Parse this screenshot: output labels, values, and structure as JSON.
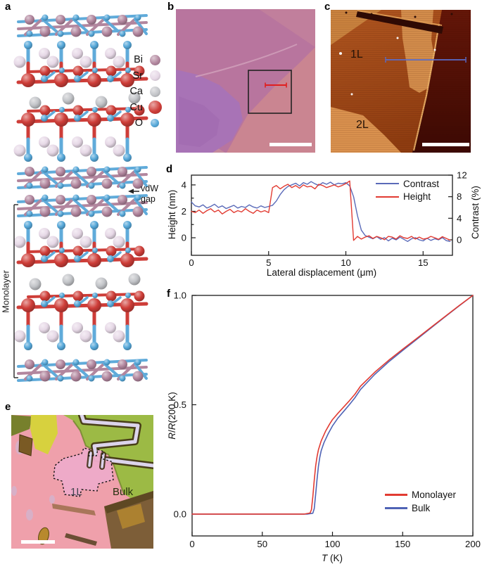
{
  "figure": {
    "panel_labels": {
      "a": "a",
      "b": "b",
      "c": "c",
      "d": "d",
      "e": "e",
      "f": "f"
    }
  },
  "panel_a": {
    "legend": [
      {
        "element": "Bi",
        "color": "#b2869e",
        "diameter": 15
      },
      {
        "element": "Sr",
        "color": "#e6d8e6",
        "diameter": 15
      },
      {
        "element": "Ca",
        "color": "#c2c4c8",
        "diameter": 15
      },
      {
        "element": "Cu",
        "color": "#ce3d38",
        "diameter": 19
      },
      {
        "element": "O",
        "color": "#55a7d8",
        "diameter": 12
      }
    ],
    "bond_blue": "#60abda",
    "bond_red": "#ce3d38",
    "bond_mauve": "#b2869e",
    "vdw_label_line1": "vdW",
    "vdw_label_line2": "gap",
    "monolayer_label": "Monolayer",
    "annotation_color": "#222222"
  },
  "panel_b": {
    "colors": {
      "background": "#b8759e",
      "top_right": "#c17f9c",
      "bottom_right": "#ca8591",
      "bottom_left": "#c48a9c",
      "flake": "#a873b6",
      "flake_inner": "#9d68ae",
      "streak": "#d2a2bb",
      "zoom_box": "#222222",
      "marker": "#e01f1f",
      "scale_bar": "#ffffff"
    }
  },
  "panel_c": {
    "label_1l": "1L",
    "label_2l": "2L",
    "colors": {
      "base_top": "#b05620",
      "base_bottom": "#8e3c10",
      "corner_tan": "#c9823e",
      "terrace_tan": "#d28c4b",
      "terrace_2l": "#d9914e",
      "dark_top": "#641608",
      "dark_bottom": "#3c0903",
      "edge_highlight": "#efb468",
      "streak": "#2e0a04",
      "streak_edge": "#df9d55",
      "profile_line": "#5a6fd0",
      "label_color": "#261307",
      "scale_bar": "#ffffff"
    }
  },
  "panel_e": {
    "label_1l": "1L",
    "label_bulk": "Bulk",
    "colors": {
      "background": "#efa0ab",
      "green": "#9cba45",
      "green_edge": "#71862c",
      "yellow": "#d7d13e",
      "olive_corner": "#77802c",
      "brown_patch": "#7a5a24",
      "brown_bottom_right": "#7d5e38",
      "gold": "#b8892e",
      "dark_sliver": "#4a3a16",
      "flake": "#edaac8",
      "outline": "#111111",
      "electrode_light": "#dcd4ec",
      "electrode_dark": "#3c2c12",
      "label_1l_color": "#44444f",
      "label_bulk_color": "#26300e",
      "scale_bar": "#ffffff"
    }
  },
  "chart_data": [
    {
      "type": "line",
      "panel": "d",
      "xlabel": "Lateral displacement (μm)",
      "ylabel_left": "Height (nm)",
      "ylabel_right": "Contrast (%)",
      "xlim": [
        0,
        16.9
      ],
      "ylim_left": [
        -1.33,
        4.74
      ],
      "ylim_right": [
        -2.87,
        12.0
      ],
      "xticks": [
        0,
        5,
        10,
        15
      ],
      "xtick_labels": [
        "0",
        "5",
        "10",
        "15"
      ],
      "yticks_left": [
        0,
        2,
        4
      ],
      "ytick_labels_left": [
        "0",
        "2",
        "4"
      ],
      "yticks_left_minor": [
        1,
        3
      ],
      "yticks_right": [
        0,
        4,
        8,
        12
      ],
      "ytick_labels_right": [
        "0",
        "4",
        "8",
        "12"
      ],
      "grid": false,
      "legend_position": "top-right",
      "x_start": 0,
      "x_step": 0.25,
      "series": [
        {
          "name": "Contrast",
          "axis": "right",
          "color": "#5a6ab8",
          "values": [
            7.0,
            6.3,
            6.1,
            6.5,
            5.9,
            6.2,
            6.6,
            6.0,
            6.3,
            5.8,
            6.1,
            6.4,
            5.9,
            6.2,
            6.0,
            6.5,
            6.1,
            5.9,
            6.3,
            6.0,
            6.2,
            6.4,
            7.2,
            8.4,
            9.3,
            9.9,
            10.2,
            10.5,
            10.0,
            10.6,
            10.3,
            10.8,
            10.4,
            10.1,
            10.6,
            10.3,
            10.7,
            10.2,
            10.5,
            10.4,
            10.6,
            10.0,
            8.0,
            4.5,
            1.8,
            0.8,
            0.5,
            0.2,
            0.6,
            0.1,
            0.4,
            -0.2,
            0.3,
            0.0,
            0.5,
            0.1,
            -0.3,
            0.2,
            0.4,
            0.0,
            -0.2,
            0.3,
            -0.1,
            0.2,
            0.0,
            0.4,
            -0.15,
            -0.3
          ]
        },
        {
          "name": "Height",
          "axis": "left",
          "color": "#e23b32",
          "values": [
            2.0,
            1.9,
            2.1,
            1.85,
            2.05,
            2.2,
            1.95,
            2.1,
            1.8,
            2.0,
            2.15,
            1.9,
            2.05,
            1.95,
            2.2,
            2.0,
            1.85,
            2.1,
            1.95,
            2.05,
            1.9,
            3.8,
            3.95,
            3.7,
            3.9,
            4.05,
            3.8,
            3.95,
            3.75,
            4.0,
            3.85,
            3.9,
            3.7,
            4.05,
            3.95,
            3.8,
            3.9,
            4.0,
            3.85,
            3.95,
            4.1,
            4.3,
            -0.2,
            0.1,
            -0.1,
            0.05,
            0.15,
            -0.05,
            0.1,
            0.0,
            -0.15,
            0.1,
            0.05,
            -0.1,
            0.15,
            0.0,
            -0.05,
            0.1,
            -0.1,
            0.05,
            -0.1,
            -0.05,
            0.1,
            0.0,
            -0.12,
            0.08,
            -0.05,
            -0.18
          ]
        }
      ]
    },
    {
      "type": "line",
      "panel": "f",
      "xlabel": "T (K)",
      "ylabel": "R/R(200 K)",
      "xlabel_parts": [
        {
          "text": "T",
          "italic": true
        },
        {
          "text": " (K)",
          "italic": false
        }
      ],
      "ylabel_parts": [
        {
          "text": "R",
          "italic": true
        },
        {
          "text": "/",
          "italic": false
        },
        {
          "text": "R",
          "italic": true
        },
        {
          "text": "(200 K)",
          "italic": false
        }
      ],
      "xlim": [
        0,
        200
      ],
      "ylim": [
        -0.1,
        1.0
      ],
      "xticks": [
        0,
        50,
        100,
        150,
        200
      ],
      "xtick_labels": [
        "0",
        "50",
        "100",
        "150",
        "200"
      ],
      "yticks": [
        0,
        0.5,
        1
      ],
      "ytick_labels": [
        "0.0",
        "0.5",
        "1.0"
      ],
      "grid": false,
      "legend_position": "bottom-right",
      "series": [
        {
          "name": "Monolayer",
          "color": "#e23b32",
          "points": [
            [
              0,
              0
            ],
            [
              40,
              0
            ],
            [
              70,
              0
            ],
            [
              80,
              0
            ],
            [
              84,
              0.005
            ],
            [
              85,
              0.02
            ],
            [
              86,
              0.08
            ],
            [
              87,
              0.155
            ],
            [
              88,
              0.22
            ],
            [
              89,
              0.263
            ],
            [
              90,
              0.295
            ],
            [
              92,
              0.335
            ],
            [
              95,
              0.378
            ],
            [
              98,
              0.412
            ],
            [
              100,
              0.432
            ],
            [
              104,
              0.462
            ],
            [
              108,
              0.49
            ],
            [
              112,
              0.518
            ],
            [
              116,
              0.548
            ],
            [
              120,
              0.585
            ],
            [
              130,
              0.648
            ],
            [
              140,
              0.703
            ],
            [
              150,
              0.754
            ],
            [
              160,
              0.803
            ],
            [
              170,
              0.853
            ],
            [
              180,
              0.903
            ],
            [
              190,
              0.952
            ],
            [
              200,
              1.0
            ]
          ]
        },
        {
          "name": "Bulk",
          "color": "#4f63b5",
          "points": [
            [
              0,
              0
            ],
            [
              40,
              0
            ],
            [
              70,
              0
            ],
            [
              82,
              0
            ],
            [
              86,
              0.004
            ],
            [
              87,
              0.025
            ],
            [
              88,
              0.09
            ],
            [
              89,
              0.16
            ],
            [
              90,
              0.22
            ],
            [
              91,
              0.26
            ],
            [
              92,
              0.29
            ],
            [
              94,
              0.327
            ],
            [
              97,
              0.368
            ],
            [
              100,
              0.403
            ],
            [
              104,
              0.44
            ],
            [
              108,
              0.47
            ],
            [
              112,
              0.5
            ],
            [
              116,
              0.532
            ],
            [
              120,
              0.57
            ],
            [
              130,
              0.638
            ],
            [
              140,
              0.696
            ],
            [
              150,
              0.748
            ],
            [
              160,
              0.799
            ],
            [
              170,
              0.85
            ],
            [
              180,
              0.901
            ],
            [
              190,
              0.951
            ],
            [
              200,
              1.0
            ]
          ]
        }
      ]
    }
  ]
}
